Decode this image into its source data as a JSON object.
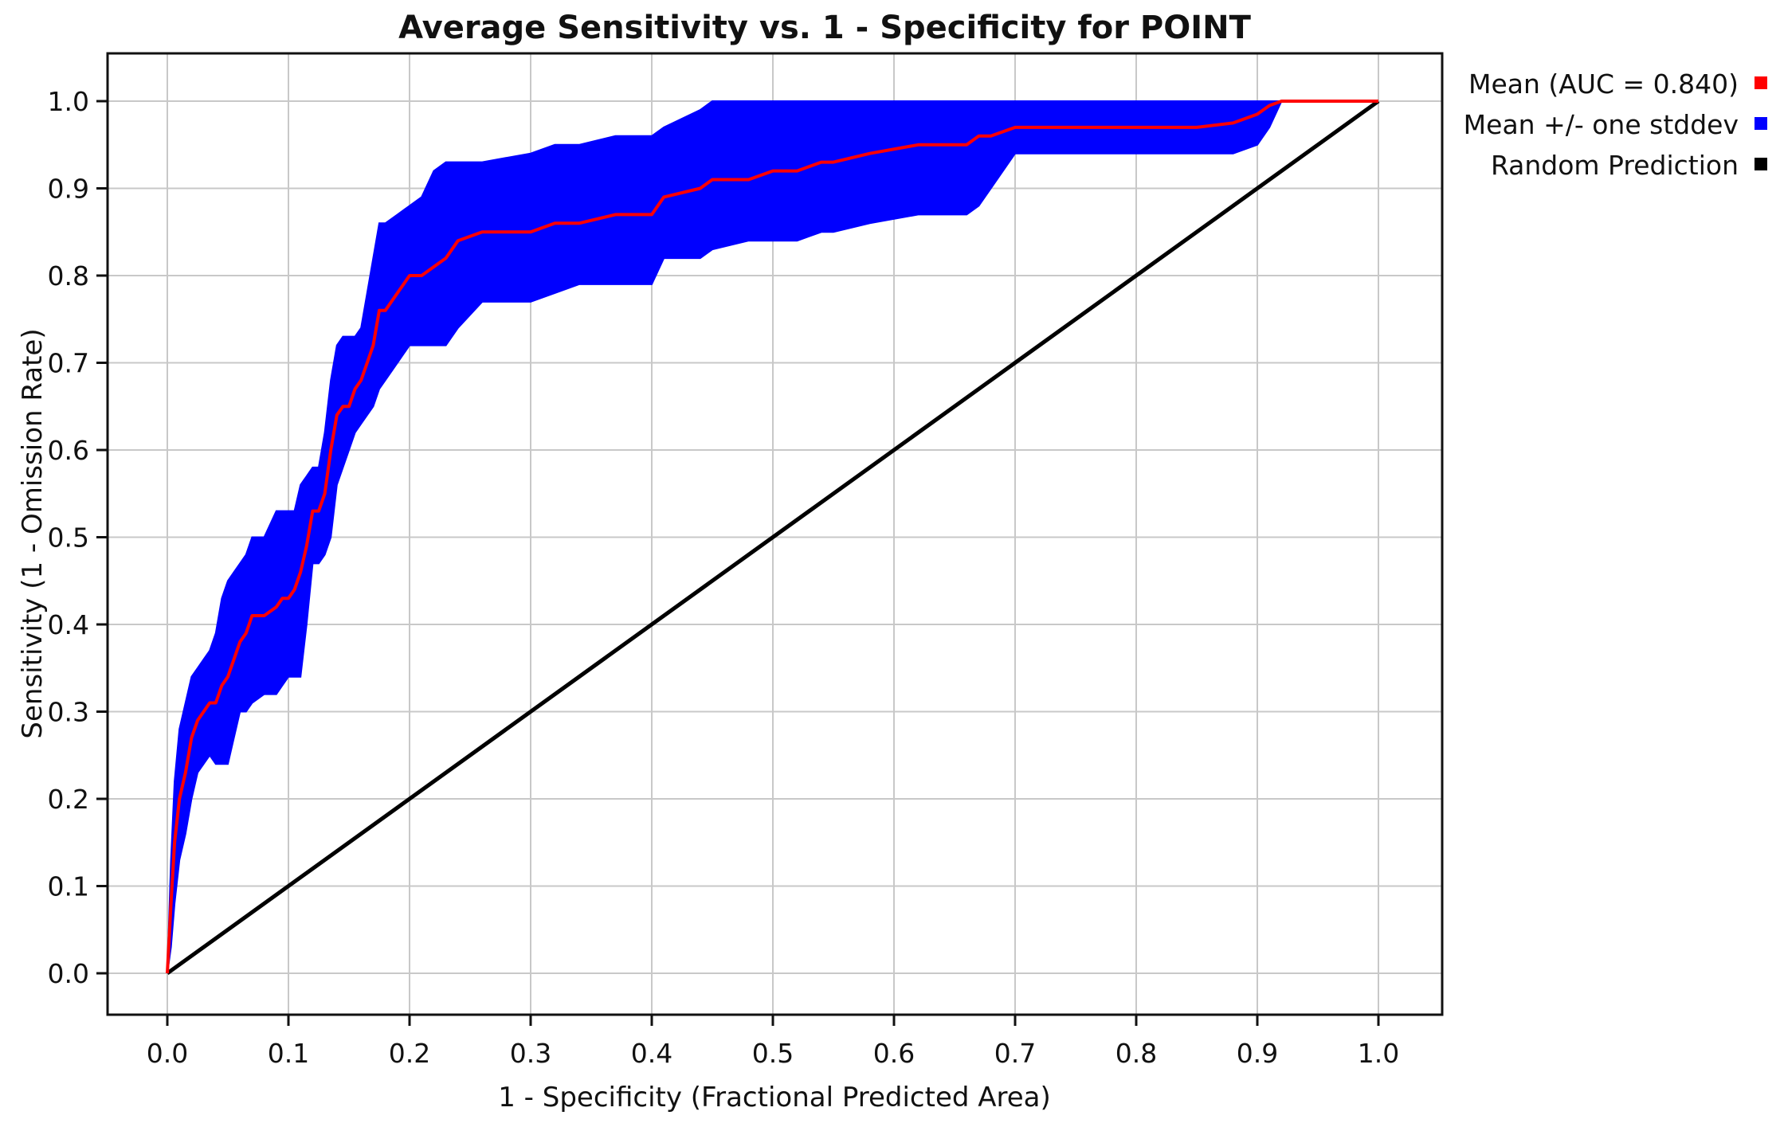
{
  "chart_data": {
    "type": "line",
    "title": "Average Sensitivity vs. 1 - Specificity for POINT",
    "xlabel": "1 - Specificity (Fractional Predicted Area)",
    "ylabel": "Sensitivity (1 - Omission Rate)",
    "xlim": [
      0,
      1
    ],
    "ylim": [
      0,
      1
    ],
    "xticks": [
      "0.0",
      "0.1",
      "0.2",
      "0.3",
      "0.4",
      "0.5",
      "0.6",
      "0.7",
      "0.8",
      "0.9",
      "1.0"
    ],
    "yticks": [
      "0.0",
      "0.1",
      "0.2",
      "0.3",
      "0.4",
      "0.5",
      "0.6",
      "0.7",
      "0.8",
      "0.9",
      "1.0"
    ],
    "grid": true,
    "legend_position": "outside-top-right",
    "legend": [
      {
        "label": "Mean (AUC = 0.840)",
        "color": "#ff0000"
      },
      {
        "label": "Mean +/- one stddev",
        "color": "#0000ff"
      },
      {
        "label": "Random Prediction",
        "color": "#000000"
      }
    ],
    "series": [
      {
        "name": "Mean (AUC = 0.840)",
        "color": "#ff0000",
        "x": [
          0.0,
          0.003,
          0.006,
          0.01,
          0.015,
          0.02,
          0.025,
          0.03,
          0.035,
          0.04,
          0.045,
          0.05,
          0.055,
          0.06,
          0.065,
          0.07,
          0.08,
          0.09,
          0.095,
          0.1,
          0.105,
          0.11,
          0.115,
          0.12,
          0.125,
          0.13,
          0.135,
          0.14,
          0.145,
          0.15,
          0.155,
          0.16,
          0.165,
          0.17,
          0.175,
          0.18,
          0.19,
          0.2,
          0.21,
          0.22,
          0.23,
          0.24,
          0.26,
          0.3,
          0.32,
          0.34,
          0.37,
          0.4,
          0.41,
          0.44,
          0.45,
          0.48,
          0.5,
          0.52,
          0.54,
          0.55,
          0.58,
          0.62,
          0.66,
          0.67,
          0.68,
          0.7,
          0.75,
          0.8,
          0.85,
          0.88,
          0.9,
          0.91,
          0.92,
          0.95,
          1.0
        ],
        "y": [
          0.0,
          0.08,
          0.15,
          0.2,
          0.23,
          0.27,
          0.29,
          0.3,
          0.31,
          0.31,
          0.33,
          0.34,
          0.36,
          0.38,
          0.39,
          0.41,
          0.41,
          0.42,
          0.43,
          0.43,
          0.44,
          0.46,
          0.49,
          0.53,
          0.53,
          0.55,
          0.6,
          0.64,
          0.65,
          0.65,
          0.67,
          0.68,
          0.7,
          0.72,
          0.76,
          0.76,
          0.78,
          0.8,
          0.8,
          0.81,
          0.82,
          0.84,
          0.85,
          0.85,
          0.86,
          0.86,
          0.87,
          0.87,
          0.89,
          0.9,
          0.91,
          0.91,
          0.92,
          0.92,
          0.93,
          0.93,
          0.94,
          0.95,
          0.95,
          0.96,
          0.96,
          0.97,
          0.97,
          0.97,
          0.97,
          0.975,
          0.985,
          0.995,
          1.0,
          1.0,
          1.0
        ]
      },
      {
        "name": "Mean +/- one stddev",
        "color": "#0000ff",
        "x": [
          0.0,
          0.003,
          0.006,
          0.01,
          0.015,
          0.02,
          0.025,
          0.03,
          0.035,
          0.04,
          0.045,
          0.05,
          0.055,
          0.06,
          0.065,
          0.07,
          0.08,
          0.09,
          0.095,
          0.1,
          0.105,
          0.11,
          0.115,
          0.12,
          0.125,
          0.13,
          0.135,
          0.14,
          0.145,
          0.15,
          0.155,
          0.16,
          0.165,
          0.17,
          0.175,
          0.18,
          0.19,
          0.2,
          0.21,
          0.22,
          0.23,
          0.24,
          0.26,
          0.3,
          0.32,
          0.34,
          0.37,
          0.4,
          0.41,
          0.44,
          0.45,
          0.48,
          0.5,
          0.52,
          0.54,
          0.55,
          0.58,
          0.62,
          0.66,
          0.67,
          0.68,
          0.7,
          0.75,
          0.8,
          0.85,
          0.88,
          0.9,
          0.91,
          0.92,
          0.95,
          1.0
        ],
        "upper": [
          0.0,
          0.13,
          0.22,
          0.28,
          0.31,
          0.34,
          0.35,
          0.36,
          0.37,
          0.39,
          0.43,
          0.45,
          0.46,
          0.47,
          0.48,
          0.5,
          0.5,
          0.53,
          0.53,
          0.53,
          0.53,
          0.56,
          0.57,
          0.58,
          0.58,
          0.62,
          0.68,
          0.72,
          0.73,
          0.73,
          0.73,
          0.74,
          0.78,
          0.82,
          0.86,
          0.86,
          0.87,
          0.88,
          0.89,
          0.92,
          0.93,
          0.93,
          0.93,
          0.94,
          0.95,
          0.95,
          0.96,
          0.96,
          0.97,
          0.99,
          1.0,
          1.0,
          1.0,
          1.0,
          1.0,
          1.0,
          1.0,
          1.0,
          1.0,
          1.0,
          1.0,
          1.0,
          1.0,
          1.0,
          1.0,
          1.0,
          1.0,
          1.0,
          1.0,
          1.0,
          1.0
        ],
        "lower": [
          0.0,
          0.03,
          0.08,
          0.13,
          0.16,
          0.2,
          0.23,
          0.24,
          0.25,
          0.24,
          0.24,
          0.24,
          0.27,
          0.3,
          0.3,
          0.31,
          0.32,
          0.32,
          0.33,
          0.34,
          0.34,
          0.34,
          0.4,
          0.47,
          0.47,
          0.48,
          0.5,
          0.56,
          0.58,
          0.6,
          0.62,
          0.63,
          0.64,
          0.65,
          0.67,
          0.68,
          0.7,
          0.72,
          0.72,
          0.72,
          0.72,
          0.74,
          0.77,
          0.77,
          0.78,
          0.79,
          0.79,
          0.79,
          0.82,
          0.82,
          0.83,
          0.84,
          0.84,
          0.84,
          0.85,
          0.85,
          0.86,
          0.87,
          0.87,
          0.88,
          0.9,
          0.94,
          0.94,
          0.94,
          0.94,
          0.94,
          0.95,
          0.97,
          1.0,
          1.0,
          1.0
        ]
      },
      {
        "name": "Random Prediction",
        "color": "#000000",
        "x": [
          0.0,
          1.0
        ],
        "y": [
          0.0,
          1.0
        ]
      }
    ]
  }
}
